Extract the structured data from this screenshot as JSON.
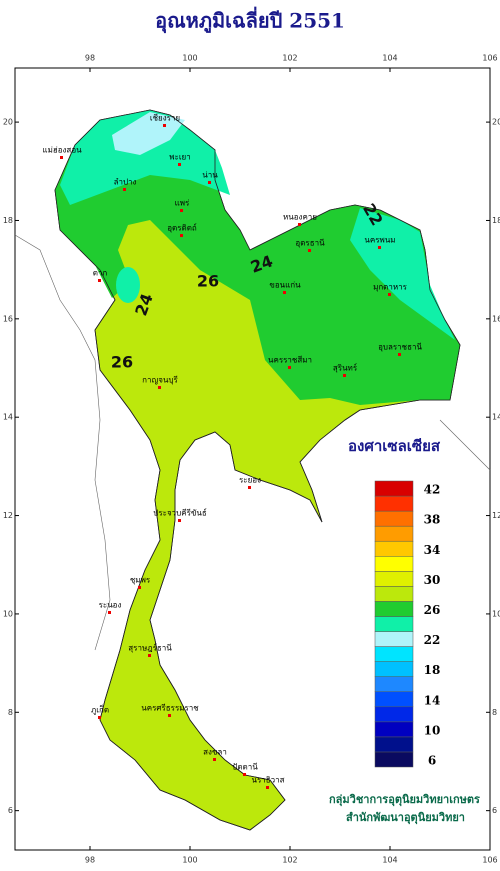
{
  "title": "อุณหภูมิเฉลี่ยปี 2551",
  "map": {
    "xlim": [
      96.5,
      106
    ],
    "ylim": [
      5.2,
      21.1
    ],
    "xticks": [
      98,
      100,
      102,
      104,
      106
    ],
    "yticks": [
      6,
      8,
      10,
      12,
      14,
      16,
      18,
      20
    ],
    "contour_labels": [
      22,
      24,
      24,
      26,
      26
    ],
    "place_labels": [
      "เชียงราย",
      "แม่ฮ่องสอน",
      "พะเยา",
      "น่าน",
      "ลำปาง",
      "แพร่",
      "อุตรดิตถ์",
      "ตาก",
      "หนองคาย",
      "อุดรธานี",
      "นครพนม",
      "มุกดาหาร",
      "ขอนแก่น",
      "นครราชสีมา",
      "อุบลราชธานี",
      "สุรินทร์",
      "กาญจนบุรี",
      "ระยอง",
      "ประจวบคีรีขันธ์",
      "ชุมพร",
      "ระนอง",
      "สุราษฎร์ธานี",
      "นครศรีธรรมราช",
      "ภูเก็ต",
      "สงขลา",
      "ปัตตานี",
      "นราธิวาส"
    ]
  },
  "legend": {
    "title": "องศาเซลเซียส",
    "bins": [
      6,
      8,
      10,
      12,
      14,
      16,
      18,
      20,
      22,
      24,
      26,
      28,
      30,
      32,
      34,
      36,
      38,
      40,
      42,
      44
    ],
    "colors": [
      "#0a0a60",
      "#00108c",
      "#0000c0",
      "#0028e8",
      "#0050ff",
      "#1e88ff",
      "#00c0ff",
      "#00e4ff",
      "#b0f4fa",
      "#10f0a8",
      "#20cc30",
      "#bce80c",
      "#e0f000",
      "#ffff00",
      "#ffc800",
      "#ff9c00",
      "#ff7000",
      "#ff3000",
      "#d80000",
      "#8c0000"
    ],
    "labels": [
      42,
      38,
      34,
      30,
      26,
      22,
      18,
      14,
      10,
      6
    ]
  },
  "credits": [
    "กลุ่มวิชาการอุตุนิยมวิทยาเกษตร",
    "สำนักพัฒนาอุตุนิยมวิทยา"
  ]
}
